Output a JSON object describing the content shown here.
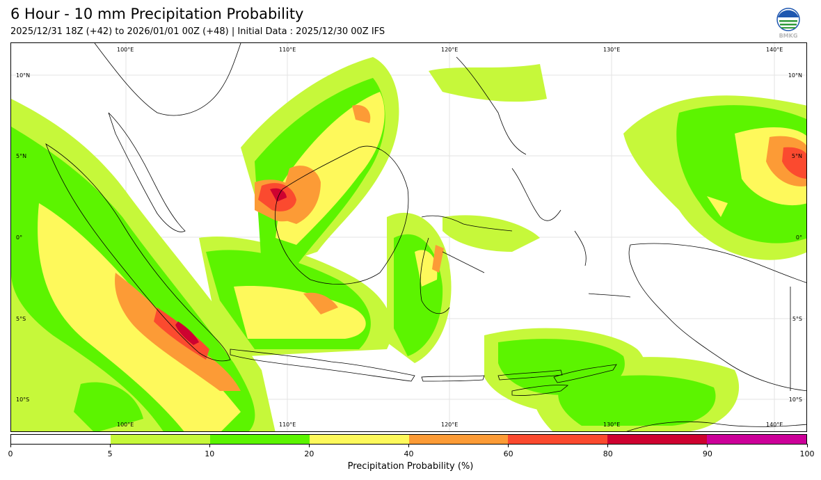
{
  "header": {
    "title": "6 Hour - 10 mm Precipitation Probability",
    "subtitle": "2025/12/31 18Z (+42) to 2026/01/01 00Z (+48) | Initial Data : 2025/12/30 00Z IFS"
  },
  "logo": {
    "icon": "bmkg-logo-icon",
    "text": "BMKG"
  },
  "map": {
    "lon_labels": [
      "100°E",
      "110°E",
      "120°E",
      "130°E",
      "140°E"
    ],
    "lat_labels": [
      "10°N",
      "5°N",
      "0°",
      "5°S",
      "10°S"
    ]
  },
  "colorbar": {
    "ticks": [
      "0",
      "5",
      "10",
      "20",
      "40",
      "60",
      "80",
      "90",
      "100"
    ],
    "colors": [
      "#ffffff",
      "#c6f83a",
      "#5cf400",
      "#fef95b",
      "#fc9b36",
      "#fb4a2f",
      "#ce0230",
      "#cc0099"
    ],
    "label": "Precipitation Probability (%)"
  }
}
